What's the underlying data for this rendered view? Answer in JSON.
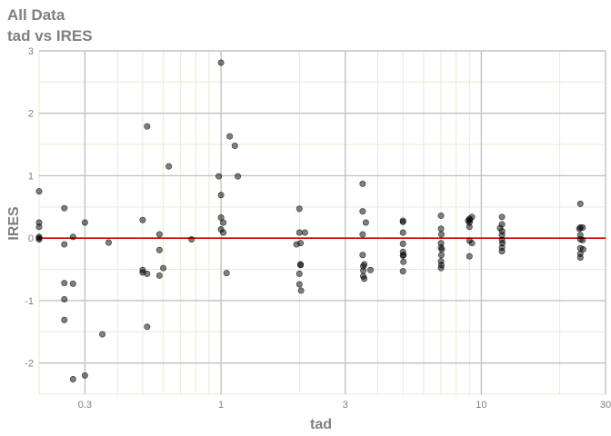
{
  "header": {
    "title": "All Data",
    "subtitle": "tad vs IRES"
  },
  "chart_data": {
    "type": "scatter",
    "title": "All Data",
    "subtitle": "tad vs IRES",
    "xlabel": "tad",
    "ylabel": "IRES",
    "x_scale": "log10",
    "xlim": [
      0.2,
      30
    ],
    "ylim": [
      -2.5,
      3
    ],
    "x_ticks": [
      0.3,
      1,
      3,
      10,
      30
    ],
    "x_tick_labels": [
      "0.3",
      "1",
      "3",
      "10",
      "30"
    ],
    "y_ticks": [
      -2,
      -1,
      0,
      1,
      2,
      3
    ],
    "y_tick_labels": [
      "-2",
      "-1",
      "0",
      "1",
      "2",
      "3"
    ],
    "x_minor_gridlines": [
      0.2,
      0.4,
      0.5,
      0.6,
      0.7,
      0.8,
      0.9,
      2,
      4,
      5,
      6,
      7,
      8,
      9,
      20
    ],
    "grid": true,
    "reference_line": {
      "y": 0,
      "color": "#cc0000"
    },
    "point_color": "#000000",
    "point_opacity": 0.5,
    "colors": {
      "major_grid": "#c2c2c2",
      "minor_grid": "#e8ead6",
      "reference_line": "#cc0000",
      "text": "#7f7f7f"
    },
    "points": [
      [
        0.2,
        0.75
      ],
      [
        0.2,
        0.25
      ],
      [
        0.2,
        0.18
      ],
      [
        0.2,
        0.02
      ],
      [
        0.2,
        0.0
      ],
      [
        0.2,
        -0.02
      ],
      [
        0.25,
        0.48
      ],
      [
        0.25,
        -0.1
      ],
      [
        0.25,
        -0.72
      ],
      [
        0.25,
        -0.98
      ],
      [
        0.25,
        -1.31
      ],
      [
        0.27,
        0.02
      ],
      [
        0.27,
        -0.73
      ],
      [
        0.27,
        -2.26
      ],
      [
        0.3,
        0.25
      ],
      [
        0.3,
        -2.2
      ],
      [
        0.35,
        -1.54
      ],
      [
        0.37,
        -0.07
      ],
      [
        0.5,
        0.29
      ],
      [
        0.5,
        -0.51
      ],
      [
        0.5,
        -0.55
      ],
      [
        0.52,
        1.79
      ],
      [
        0.52,
        -0.57
      ],
      [
        0.52,
        -1.42
      ],
      [
        0.58,
        0.06
      ],
      [
        0.58,
        -0.19
      ],
      [
        0.58,
        -0.6
      ],
      [
        0.6,
        -0.48
      ],
      [
        0.63,
        1.15
      ],
      [
        0.77,
        -0.02
      ],
      [
        0.98,
        0.99
      ],
      [
        1.0,
        2.81
      ],
      [
        1.0,
        0.69
      ],
      [
        1.0,
        0.33
      ],
      [
        1.0,
        0.14
      ],
      [
        1.02,
        0.25
      ],
      [
        1.02,
        0.09
      ],
      [
        1.05,
        -0.56
      ],
      [
        1.08,
        1.63
      ],
      [
        1.13,
        1.48
      ],
      [
        1.16,
        0.99
      ],
      [
        1.95,
        -0.1
      ],
      [
        2.0,
        0.47
      ],
      [
        2.0,
        0.09
      ],
      [
        2.02,
        -0.08
      ],
      [
        2.02,
        -0.42
      ],
      [
        2.02,
        -0.43
      ],
      [
        2.0,
        -0.57
      ],
      [
        2.0,
        -0.74
      ],
      [
        2.03,
        -0.84
      ],
      [
        2.1,
        0.09
      ],
      [
        3.5,
        0.87
      ],
      [
        3.5,
        0.43
      ],
      [
        3.5,
        0.06
      ],
      [
        3.5,
        -0.27
      ],
      [
        3.52,
        -0.45
      ],
      [
        3.52,
        -0.52
      ],
      [
        3.52,
        -0.61
      ],
      [
        3.55,
        -0.65
      ],
      [
        3.6,
        0.25
      ],
      [
        3.55,
        -0.42
      ],
      [
        3.75,
        -0.51
      ],
      [
        5.0,
        0.28
      ],
      [
        5.0,
        0.26
      ],
      [
        5.0,
        0.09
      ],
      [
        5.0,
        -0.09
      ],
      [
        5.0,
        -0.22
      ],
      [
        5.0,
        -0.28
      ],
      [
        5.02,
        -0.38
      ],
      [
        5.0,
        -0.53
      ],
      [
        5.02,
        -0.27
      ],
      [
        7.0,
        0.36
      ],
      [
        7.0,
        0.15
      ],
      [
        7.02,
        0.06
      ],
      [
        7.0,
        -0.08
      ],
      [
        7.0,
        -0.15
      ],
      [
        7.02,
        -0.27
      ],
      [
        7.0,
        -0.37
      ],
      [
        7.02,
        -0.43
      ],
      [
        7.0,
        -0.48
      ],
      [
        7.05,
        -0.18
      ],
      [
        8.9,
        0.28
      ],
      [
        9.0,
        0.31
      ],
      [
        9.0,
        0.18
      ],
      [
        9.0,
        0.25
      ],
      [
        9.05,
        0.29
      ],
      [
        9.2,
        0.34
      ],
      [
        9.0,
        -0.04
      ],
      [
        9.0,
        -0.29
      ],
      [
        9.2,
        -0.08
      ],
      [
        11.8,
        0.16
      ],
      [
        12.0,
        0.34
      ],
      [
        12.0,
        0.22
      ],
      [
        12.0,
        0.05
      ],
      [
        12.0,
        -0.03
      ],
      [
        12.0,
        -0.15
      ],
      [
        12.0,
        -0.21
      ],
      [
        12.02,
        0.11
      ],
      [
        12.05,
        -0.08
      ],
      [
        23.8,
        0.15
      ],
      [
        24.0,
        0.55
      ],
      [
        24.0,
        0.17
      ],
      [
        24.0,
        0.05
      ],
      [
        24.0,
        -0.02
      ],
      [
        24.0,
        -0.16
      ],
      [
        24.0,
        -0.25
      ],
      [
        24.0,
        -0.31
      ],
      [
        24.5,
        0.17
      ],
      [
        24.6,
        -0.18
      ],
      [
        24.5,
        -0.03
      ]
    ]
  }
}
